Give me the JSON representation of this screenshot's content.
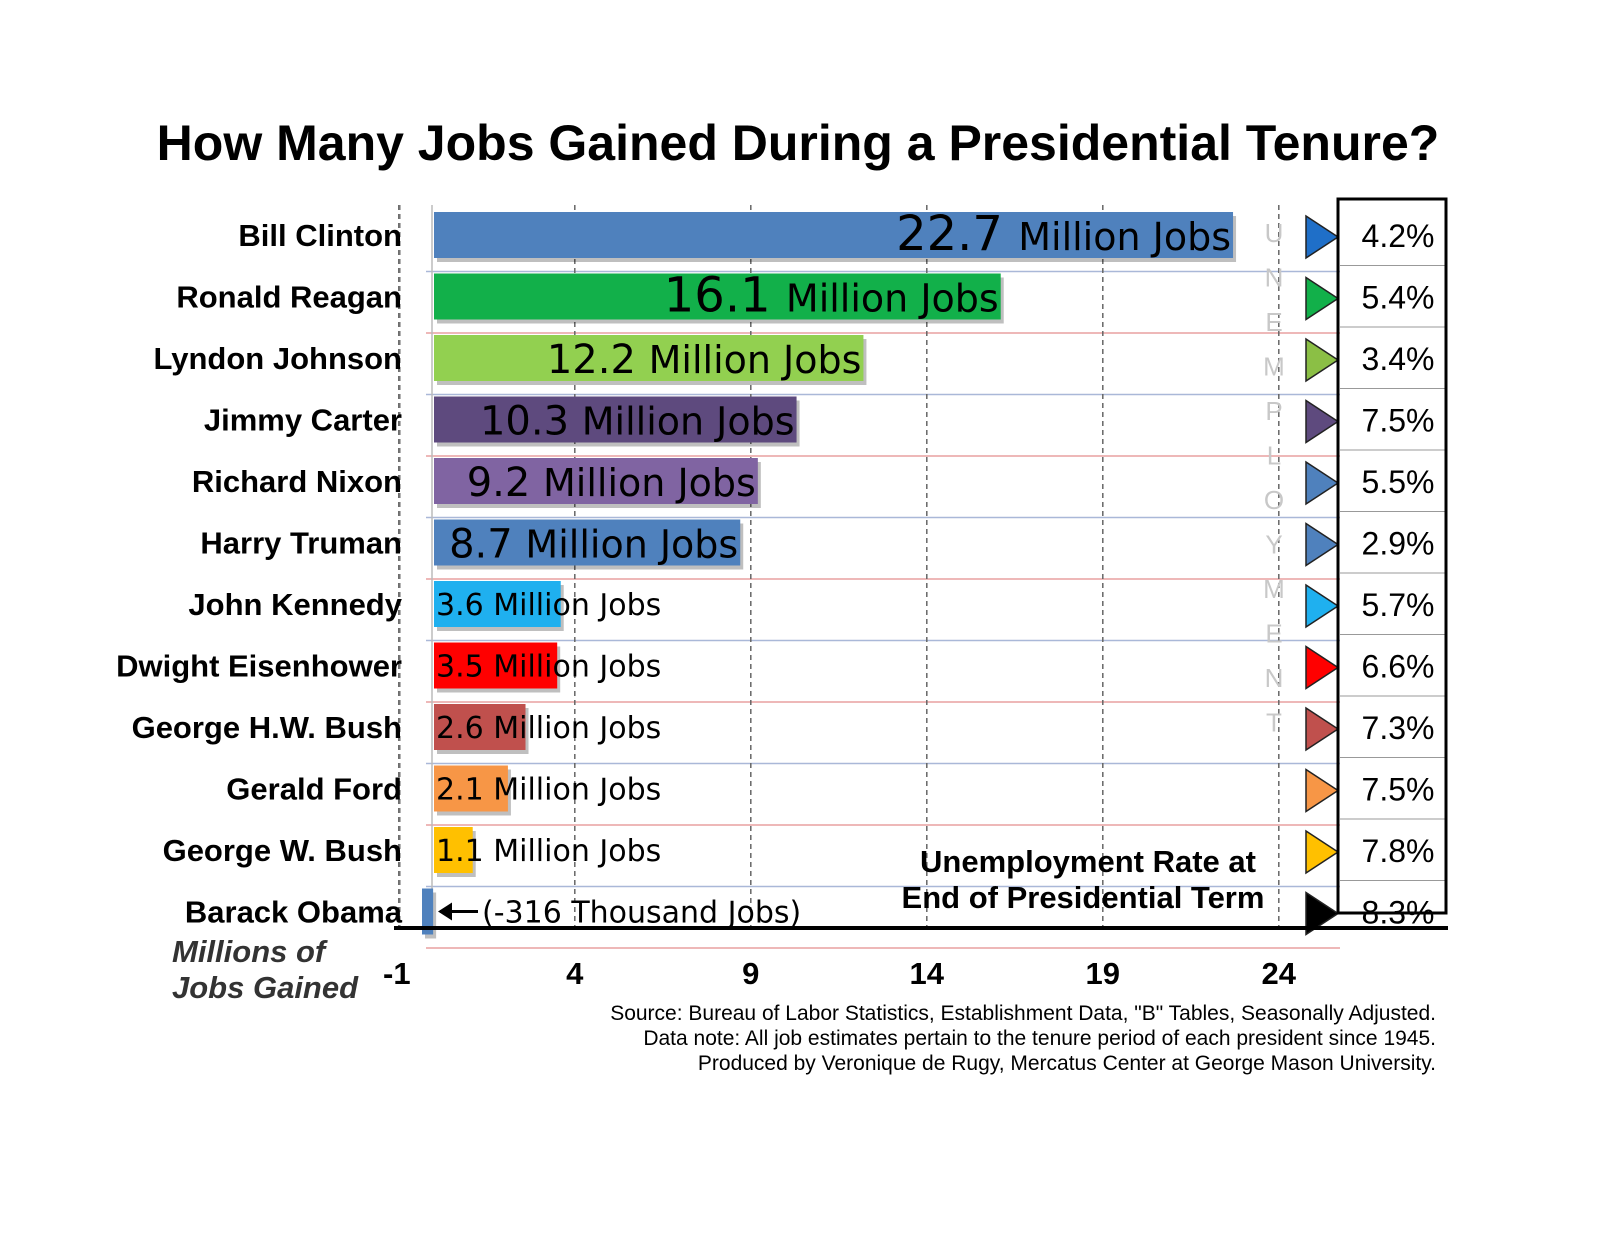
{
  "chart_data": {
    "type": "bar",
    "orientation": "horizontal",
    "title": "How Many Jobs Gained During a Presidential Tenure?",
    "xlabel_lines": [
      "Millions of",
      "Jobs Gained"
    ],
    "xlim": [
      -1,
      24
    ],
    "xticks": [
      "-1",
      "4",
      "9",
      "14",
      "19",
      "24"
    ],
    "tick_values": [
      -1,
      4,
      9,
      14,
      19,
      24
    ],
    "grid": "vertical dashed",
    "rows": [
      {
        "president": "Bill Clinton",
        "jobs": 22.7,
        "bar_label": "Million Jobs",
        "value_text": "22.7",
        "color": "#4f81bd",
        "unemployment": "4.2%",
        "triangle_color": "#1f6fc8"
      },
      {
        "president": "Ronald Reagan",
        "jobs": 16.1,
        "bar_label": "Million Jobs",
        "value_text": "16.1",
        "color": "#12b04a",
        "unemployment": "5.4%",
        "triangle_color": "#12b04a"
      },
      {
        "president": "Lyndon Johnson",
        "jobs": 12.2,
        "bar_label": "Million Jobs",
        "value_text": "12.2",
        "color": "#92d050",
        "unemployment": "3.4%",
        "triangle_color": "#8bbf45"
      },
      {
        "president": "Jimmy Carter",
        "jobs": 10.3,
        "bar_label": "Million Jobs",
        "value_text": "10.3",
        "color": "#5e4a7e",
        "unemployment": "7.5%",
        "triangle_color": "#5e4a7e"
      },
      {
        "president": "Richard Nixon",
        "jobs": 9.2,
        "bar_label": "Million Jobs",
        "value_text": "9.2",
        "color": "#8064a2",
        "unemployment": "5.5%",
        "triangle_color": "#4f81bd"
      },
      {
        "president": "Harry Truman",
        "jobs": 8.7,
        "bar_label": "Million Jobs",
        "value_text": "8.7",
        "color": "#4f81bd",
        "unemployment": "2.9%",
        "triangle_color": "#4f81bd"
      },
      {
        "president": "John Kennedy",
        "jobs": 3.6,
        "bar_label": "Million Jobs",
        "value_text": "3.6",
        "color": "#1fb0ef",
        "unemployment": "5.7%",
        "triangle_color": "#1fb0ef"
      },
      {
        "president": "Dwight Eisenhower",
        "jobs": 3.5,
        "bar_label": "Million Jobs",
        "value_text": "3.5",
        "color": "#ff0000",
        "unemployment": "6.6%",
        "triangle_color": "#ff0000"
      },
      {
        "president": "George H.W. Bush",
        "jobs": 2.6,
        "bar_label": "Million Jobs",
        "value_text": "2.6",
        "color": "#c0504d",
        "unemployment": "7.3%",
        "triangle_color": "#c0504d"
      },
      {
        "president": "Gerald Ford",
        "jobs": 2.1,
        "bar_label": "Million Jobs",
        "value_text": "2.1",
        "color": "#f79646",
        "unemployment": "7.5%",
        "triangle_color": "#f79646"
      },
      {
        "president": "George W. Bush",
        "jobs": 1.1,
        "bar_label": "Million Jobs",
        "value_text": "1.1",
        "color": "#ffc000",
        "unemployment": "7.8%",
        "triangle_color": "#ffc000"
      },
      {
        "president": "Barack Obama",
        "jobs": -0.316,
        "bar_label": "(-316 Thousand Jobs)",
        "value_text": "",
        "color": "#4f81bd",
        "unemployment": "8.3%",
        "triangle_color": "#000000"
      }
    ],
    "unemployment_side_label": [
      "U",
      "N",
      "E",
      "M",
      "P",
      "L",
      "O",
      "Y",
      "M",
      "E",
      "N",
      "T"
    ],
    "legend_lines": [
      "Unemployment Rate at",
      "End of Presidential Term"
    ],
    "source_lines": [
      "Source: Bureau of Labor Statistics, Establishment Data, \"B\" Tables, Seasonally Adjusted.",
      "Data note: All job estimates pertain to the tenure period of each president since 1945.",
      "Produced by Veronique de Rugy, Mercatus Center at George Mason University."
    ]
  }
}
